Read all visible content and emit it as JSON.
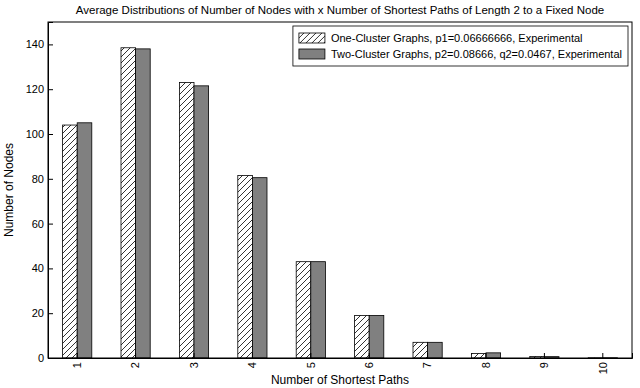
{
  "chart_data": {
    "type": "bar",
    "title": "Average Distributions of Number of Nodes with x Number of Shortest Paths of Length 2 to a Fixed Node",
    "x_label": "Number of Shortest Paths",
    "y_label": "Number of Nodes",
    "categories": [
      "1",
      "2",
      "3",
      "4",
      "5",
      "6",
      "7",
      "8",
      "9",
      "10"
    ],
    "series": [
      {
        "name": "One-Cluster Graphs, p1=0.06666666, Experimental",
        "color": "#ffffff",
        "values": [
          104,
          138.5,
          123,
          81.5,
          43,
          19,
          7,
          2,
          0.7,
          0.1
        ]
      },
      {
        "name": "Two-Cluster Graphs, p2=0.08666, q2=0.0467, Experimental",
        "color": "#808080",
        "values": [
          105,
          138,
          121.5,
          80.5,
          43,
          19,
          7,
          2.3,
          0.6,
          0.1
        ]
      }
    ],
    "ylim": [
      0,
      150
    ],
    "yticks": [
      0,
      20,
      40,
      60,
      80,
      100,
      120,
      140
    ],
    "legend": "upper right",
    "grid": false
  }
}
